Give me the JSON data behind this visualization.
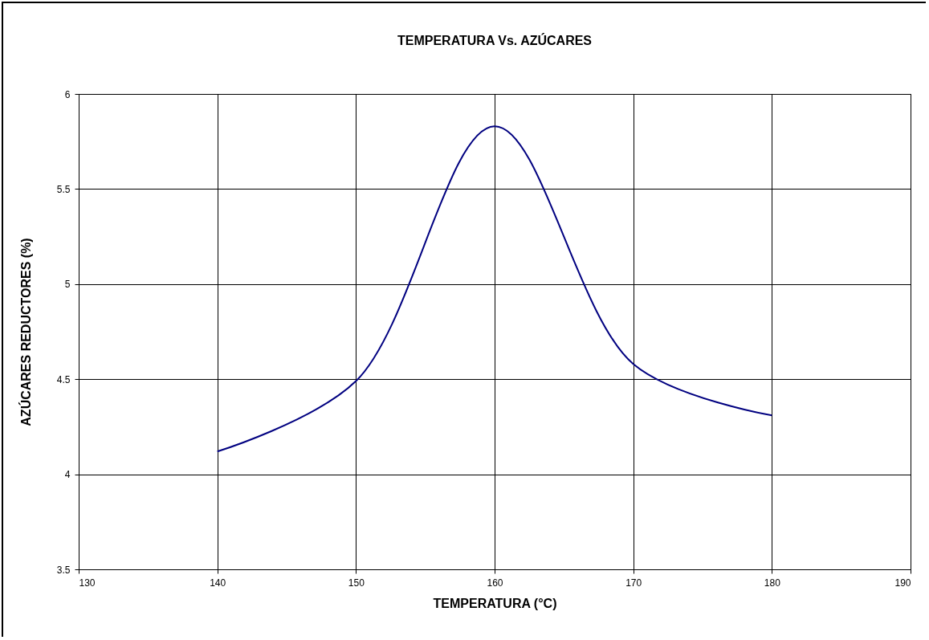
{
  "chart_data": {
    "type": "line",
    "title": "TEMPERATURA Vs. AZÚCARES",
    "xlabel": "TEMPERATURA (°C)",
    "ylabel": "AZÚCARES REDUCTORES (%)",
    "x": [
      140,
      150,
      160,
      170,
      180
    ],
    "series": [
      {
        "color": "#000080",
        "values": [
          4.12,
          4.49,
          5.83,
          4.58,
          4.31
        ]
      }
    ],
    "xlim": [
      130,
      190
    ],
    "xticks": [
      130,
      140,
      150,
      160,
      170,
      180,
      190
    ],
    "ylim": [
      3.5,
      6
    ],
    "yticks": [
      3.5,
      4,
      4.5,
      5,
      5.5,
      6
    ],
    "grid": true,
    "legend": false,
    "marker": "none",
    "line_style": "solid"
  }
}
